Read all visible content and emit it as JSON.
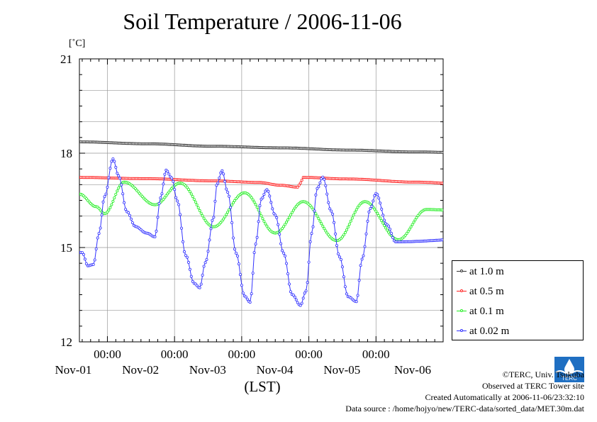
{
  "title": "Soil Temperature / 2006-11-06",
  "unit_label": "[˚C]",
  "credits": [
    "©TERC, Univ. Tsukuba",
    "Observed at TERC Tower site",
    "Created Automatically at 2006-11-06/23:32:10",
    "Data source : /home/hojyo/new/TERC-data/sorted_data/MET.30m.dat"
  ],
  "logo_text": "TERC",
  "chart_data": {
    "type": "line",
    "title": "Soil Temperature / 2006-11-06",
    "xlabel": "(LST)",
    "ylabel": "[˚C]",
    "x_unit": "hours since 2006-10-31 00:00 LST",
    "xlim": [
      14,
      144
    ],
    "ylim": [
      12,
      21
    ],
    "y_ticks": [
      12,
      15,
      18,
      21
    ],
    "x_ticks": [
      {
        "x": 24,
        "time": "00:00",
        "date": "Nov-01"
      },
      {
        "x": 48,
        "time": "00:00",
        "date": "Nov-02"
      },
      {
        "x": 72,
        "time": "00:00",
        "date": "Nov-03"
      },
      {
        "x": 96,
        "time": "00:00",
        "date": "Nov-04"
      },
      {
        "x": 120,
        "time": "00:00",
        "date": "Nov-05"
      },
      {
        "x": 144,
        "time": "",
        "date": "Nov-06"
      }
    ],
    "grid": true,
    "legend_position": "lower-right outside",
    "series": [
      {
        "name": "at 1.0 m",
        "color": "#333333",
        "points": [
          [
            14,
            18.36
          ],
          [
            38,
            18.3
          ],
          [
            62,
            18.22
          ],
          [
            86,
            18.17
          ],
          [
            110,
            18.1
          ],
          [
            134,
            18.04
          ],
          [
            158,
            18.0
          ]
        ]
      },
      {
        "name": "at 0.5 m",
        "color": "#ff2020",
        "points": [
          [
            14,
            17.23
          ],
          [
            38,
            17.19
          ],
          [
            62,
            17.12
          ],
          [
            78,
            17.07
          ],
          [
            86,
            16.98
          ],
          [
            92,
            16.92
          ],
          [
            93,
            17.05
          ],
          [
            94,
            17.23
          ],
          [
            110,
            17.18
          ],
          [
            134,
            17.08
          ],
          [
            158,
            16.98
          ]
        ]
      },
      {
        "name": "at 0.1 m",
        "color": "#22ee22",
        "points": [
          [
            14,
            16.7
          ],
          [
            20,
            16.3
          ],
          [
            23,
            16.08
          ],
          [
            30,
            17.08
          ],
          [
            41,
            16.36
          ],
          [
            50,
            17.05
          ],
          [
            62,
            15.66
          ],
          [
            73,
            16.74
          ],
          [
            84,
            15.46
          ],
          [
            94,
            16.46
          ],
          [
            106,
            15.22
          ],
          [
            116,
            16.46
          ],
          [
            128,
            15.25
          ],
          [
            138,
            16.21
          ],
          [
            158,
            16.12
          ]
        ]
      },
      {
        "name": "at 0.02 m",
        "color": "#3333ff",
        "points": [
          [
            14,
            14.84
          ],
          [
            15,
            14.84
          ],
          [
            17,
            14.42
          ],
          [
            19,
            14.46
          ],
          [
            21,
            15.45
          ],
          [
            23,
            16.62
          ],
          [
            26,
            17.82
          ],
          [
            28,
            17.28
          ],
          [
            31,
            16.14
          ],
          [
            34,
            15.67
          ],
          [
            38,
            15.46
          ],
          [
            41,
            15.34
          ],
          [
            43,
            16.58
          ],
          [
            45,
            17.46
          ],
          [
            47,
            17.21
          ],
          [
            49,
            16.48
          ],
          [
            52,
            14.75
          ],
          [
            55,
            13.86
          ],
          [
            57,
            13.72
          ],
          [
            59,
            14.52
          ],
          [
            62,
            15.96
          ],
          [
            63,
            16.98
          ],
          [
            65,
            17.44
          ],
          [
            67,
            16.76
          ],
          [
            70,
            14.82
          ],
          [
            73,
            13.46
          ],
          [
            75,
            13.26
          ],
          [
            77,
            15.11
          ],
          [
            79,
            16.54
          ],
          [
            81,
            16.84
          ],
          [
            84,
            16.03
          ],
          [
            87,
            14.82
          ],
          [
            90,
            13.51
          ],
          [
            93,
            13.16
          ],
          [
            95,
            13.62
          ],
          [
            97,
            15.45
          ],
          [
            99,
            16.88
          ],
          [
            101,
            17.24
          ],
          [
            104,
            16.16
          ],
          [
            107,
            14.7
          ],
          [
            110,
            13.44
          ],
          [
            113,
            13.28
          ],
          [
            115,
            14.63
          ],
          [
            118,
            16.24
          ],
          [
            120,
            16.72
          ],
          [
            124,
            15.72
          ],
          [
            127,
            15.18
          ],
          [
            158,
            15.29
          ]
        ]
      }
    ]
  },
  "legend": [
    {
      "label": "at 1.0 m",
      "color": "#333333"
    },
    {
      "label": "at 0.5 m",
      "color": "#ff2020"
    },
    {
      "label": "at 0.1 m",
      "color": "#22ee22"
    },
    {
      "label": "at 0.02 m",
      "color": "#3333ff"
    }
  ]
}
